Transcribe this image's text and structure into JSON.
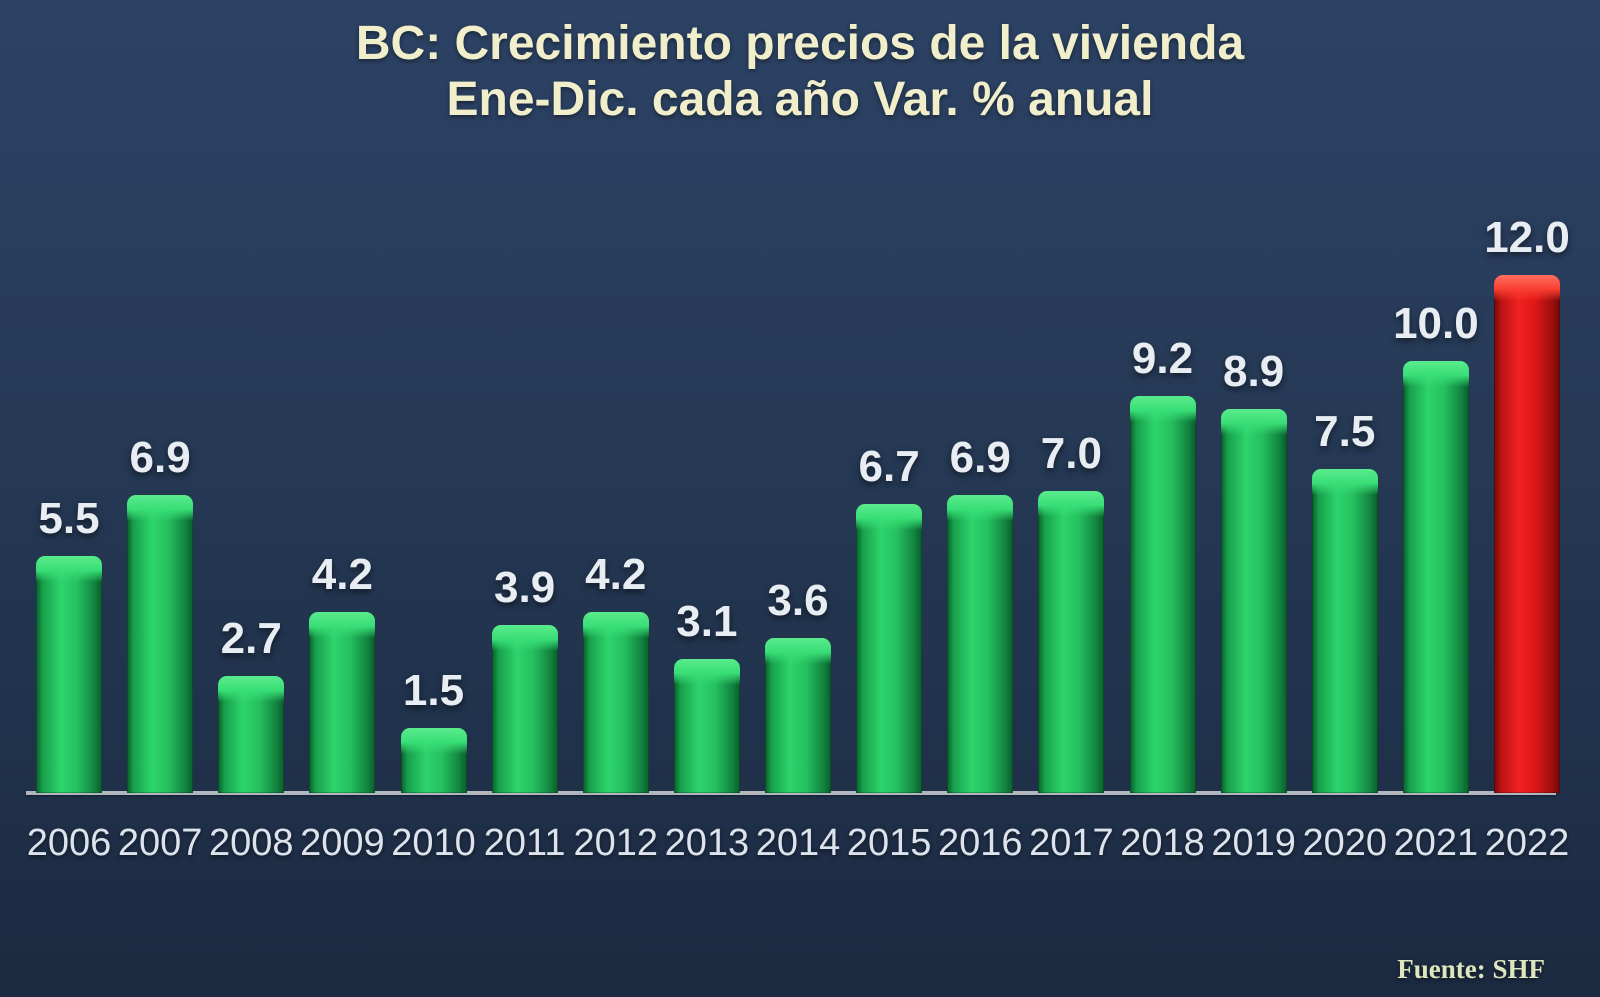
{
  "title": {
    "line1": "BC: Crecimiento precios de la vivienda",
    "line2": "Ene-Dic. cada año Var. % anual"
  },
  "source": "Fuente: SHF",
  "colors": {
    "background_top": "#2c4264",
    "background_bottom": "#1c2a41",
    "bar_green": "#2ed46c",
    "bar_red": "#f12222",
    "title_text": "#f1eecb",
    "value_label_text": "#e8ecf3",
    "year_label_text": "#dde3ed",
    "axis_line": "#b2b6bf",
    "source_text": "#dde6bd"
  },
  "chart_data": {
    "type": "bar",
    "title": "BC: Crecimiento precios de la vivienda Ene-Dic. cada año Var. % anual",
    "categories": [
      "2006",
      "2007",
      "2008",
      "2009",
      "2010",
      "2011",
      "2012",
      "2013",
      "2014",
      "2015",
      "2016",
      "2017",
      "2018",
      "2019",
      "2020",
      "2021",
      "2022"
    ],
    "values": [
      5.5,
      6.9,
      2.7,
      4.2,
      1.5,
      3.9,
      4.2,
      3.1,
      3.6,
      6.7,
      6.9,
      7.0,
      9.2,
      8.9,
      7.5,
      10.0,
      12.0
    ],
    "bar_colors": [
      "green",
      "green",
      "green",
      "green",
      "green",
      "green",
      "green",
      "green",
      "green",
      "green",
      "green",
      "green",
      "green",
      "green",
      "green",
      "green",
      "red"
    ],
    "data_labels": [
      "5.5",
      "6.9",
      "2.7",
      "4.2",
      "1.5",
      "3.9",
      "4.2",
      "3.1",
      "3.6",
      "6.7",
      "6.9",
      "7.0",
      "9.2",
      "8.9",
      "7.5",
      "10.0",
      "12.0"
    ],
    "xlabel": "",
    "ylabel": "",
    "ylim": [
      0,
      12
    ],
    "grid": false,
    "legend": false,
    "source": "Fuente: SHF"
  }
}
